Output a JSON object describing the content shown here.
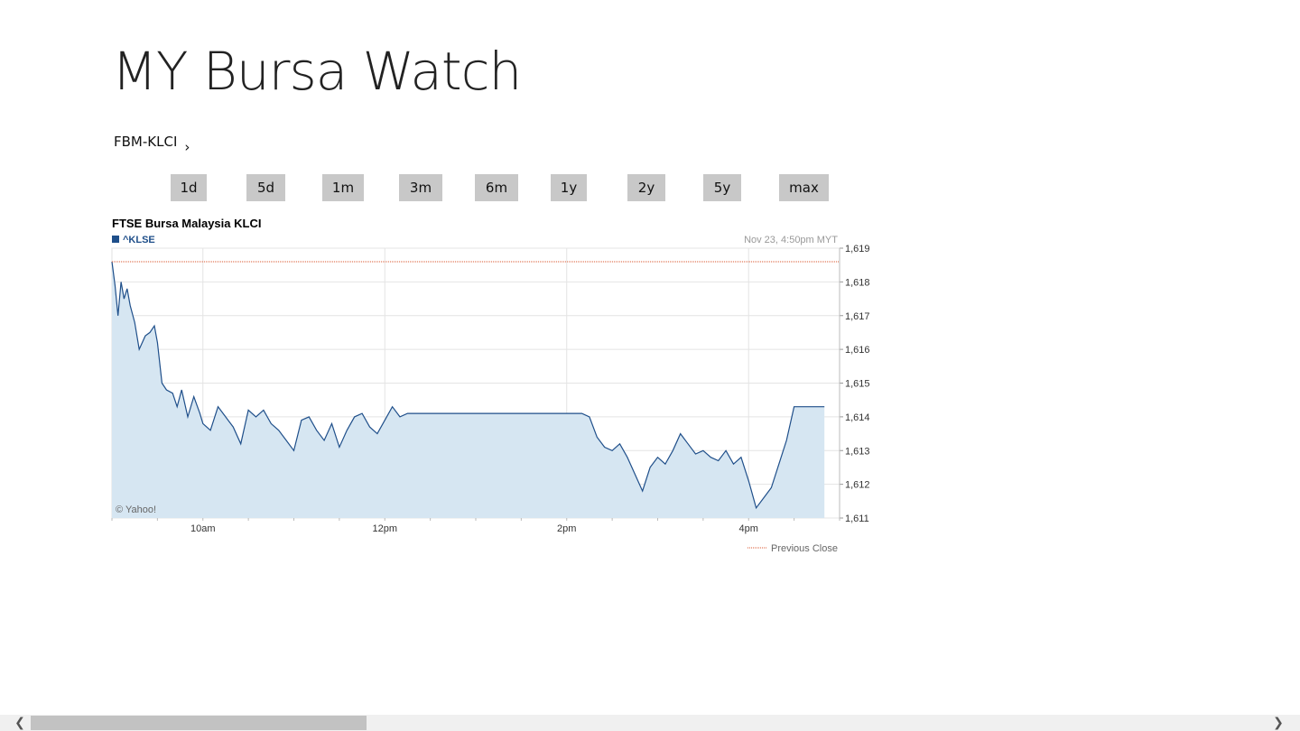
{
  "app": {
    "title": "MY Bursa Watch"
  },
  "index_selector": {
    "label": "FBM-KLCI",
    "chevron": "›"
  },
  "ranges": [
    "1d",
    "5d",
    "1m",
    "3m",
    "6m",
    "1y",
    "2y",
    "5y",
    "max"
  ],
  "chart": {
    "title": "FTSE Bursa Malaysia KLCI",
    "symbol": "^KLSE",
    "timestamp": "Nov 23, 4:50pm MYT",
    "credit": "© Yahoo!",
    "legend_previous_close": "Previous Close",
    "colors": {
      "line": "#1f4f8a",
      "fill": "#d6e6f2",
      "previous_close": "#d9532b",
      "grid": "#e4e4e4"
    }
  },
  "chart_data": {
    "type": "area",
    "title": "FTSE Bursa Malaysia KLCI",
    "series": [
      {
        "name": "^KLSE",
        "x": [
          "9:00",
          "9:02",
          "9:04",
          "9:06",
          "9:08",
          "9:10",
          "9:12",
          "9:15",
          "9:18",
          "9:22",
          "9:25",
          "9:28",
          "9:30",
          "9:33",
          "9:36",
          "9:40",
          "9:43",
          "9:46",
          "9:50",
          "9:54",
          "9:58",
          "10:00",
          "10:05",
          "10:10",
          "10:15",
          "10:20",
          "10:25",
          "10:30",
          "10:35",
          "10:40",
          "10:45",
          "10:50",
          "10:55",
          "11:00",
          "11:05",
          "11:10",
          "11:15",
          "11:20",
          "11:25",
          "11:30",
          "11:35",
          "11:40",
          "11:45",
          "11:50",
          "11:55",
          "12:00",
          "12:05",
          "12:10",
          "12:15",
          "12:20",
          "13:00",
          "13:30",
          "14:00",
          "14:10",
          "14:15",
          "14:20",
          "14:25",
          "14:30",
          "14:35",
          "14:40",
          "14:45",
          "14:50",
          "14:55",
          "15:00",
          "15:05",
          "15:10",
          "15:15",
          "15:20",
          "15:25",
          "15:30",
          "15:35",
          "15:40",
          "15:45",
          "15:50",
          "15:55",
          "16:00",
          "16:05",
          "16:10",
          "16:15",
          "16:20",
          "16:25",
          "16:30",
          "16:35",
          "16:40",
          "16:50"
        ],
        "values": [
          1618.6,
          1617.9,
          1617.0,
          1618.0,
          1617.5,
          1617.8,
          1617.3,
          1616.8,
          1616.0,
          1616.4,
          1616.5,
          1616.7,
          1616.2,
          1615.0,
          1614.8,
          1614.7,
          1614.3,
          1614.8,
          1614.0,
          1614.6,
          1614.1,
          1613.8,
          1613.6,
          1614.3,
          1614.0,
          1613.7,
          1613.2,
          1614.2,
          1614.0,
          1614.2,
          1613.8,
          1613.6,
          1613.3,
          1613.0,
          1613.9,
          1614.0,
          1613.6,
          1613.3,
          1613.8,
          1613.1,
          1613.6,
          1614.0,
          1614.1,
          1613.7,
          1613.5,
          1613.9,
          1614.3,
          1614.0,
          1614.1,
          1614.1,
          1614.1,
          1614.1,
          1614.1,
          1614.1,
          1614.0,
          1613.4,
          1613.1,
          1613.0,
          1613.2,
          1612.8,
          1612.3,
          1611.8,
          1612.5,
          1612.8,
          1612.6,
          1613.0,
          1613.5,
          1613.2,
          1612.9,
          1613.0,
          1612.8,
          1612.7,
          1613.0,
          1612.6,
          1612.8,
          1612.1,
          1611.3,
          1611.6,
          1611.9,
          1612.6,
          1613.3,
          1614.3,
          1614.3,
          1614.3,
          1614.3
        ]
      }
    ],
    "previous_close": 1618.6,
    "x_ticks": [
      "10am",
      "12pm",
      "2pm",
      "4pm"
    ],
    "y_ticks": [
      "1,611",
      "1,612",
      "1,613",
      "1,614",
      "1,615",
      "1,616",
      "1,617",
      "1,618",
      "1,619"
    ],
    "ylim": [
      1611,
      1619
    ],
    "xlim": [
      "9:00",
      "17:00"
    ],
    "grid": true,
    "legend": "bottom-right"
  }
}
